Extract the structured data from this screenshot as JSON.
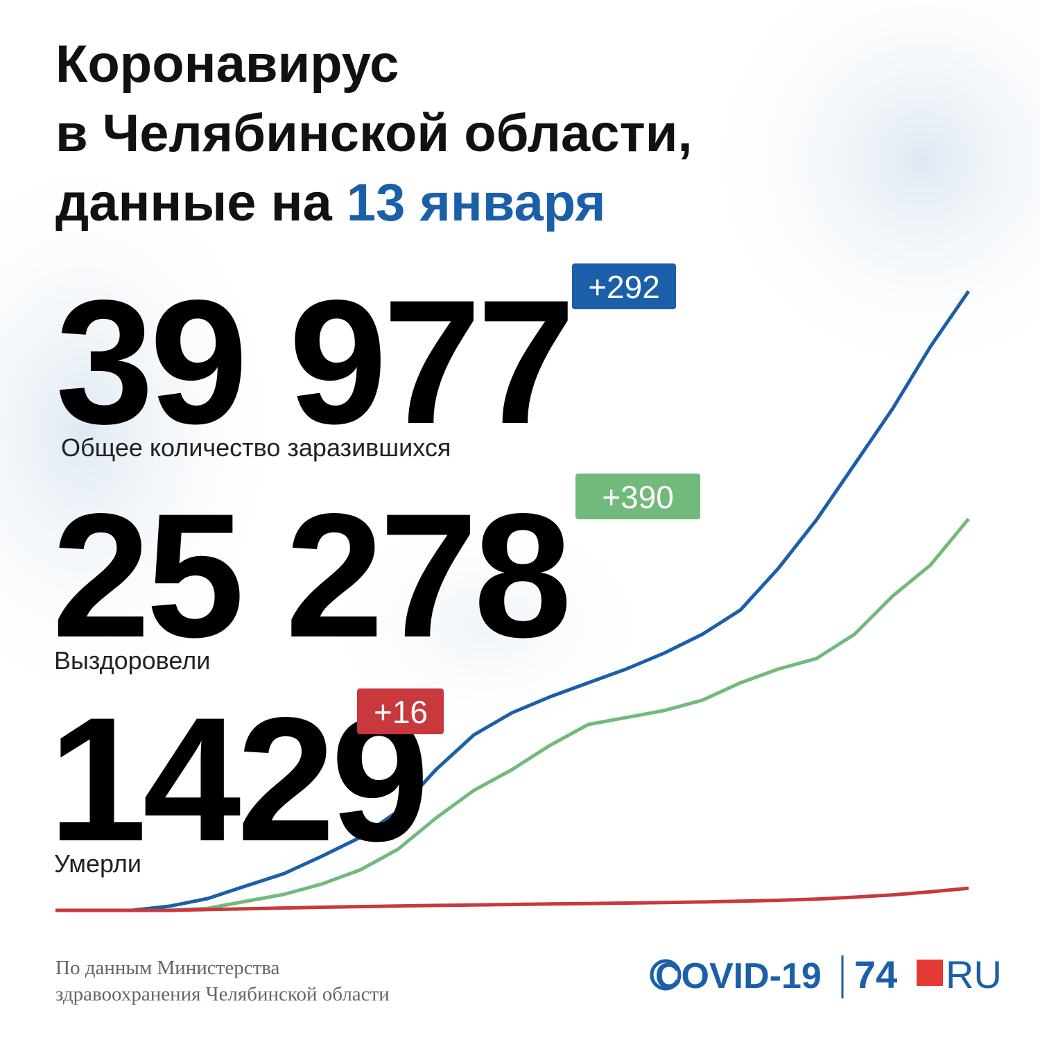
{
  "header": {
    "title_lines": [
      "Коронавирус",
      "в Челябинской области,",
      "данные на"
    ],
    "date": "13 января"
  },
  "stats": [
    {
      "value": "39 977",
      "delta": "+292",
      "label": "Общее количество заразившихся"
    },
    {
      "value": "25 278",
      "delta": "+390",
      "label": "Выздоровели"
    },
    {
      "value": "1429",
      "delta": "+16",
      "label": "Умерли"
    }
  ],
  "chart_data": {
    "type": "line",
    "ylim": [
      0,
      40000
    ],
    "series": [
      {
        "color": "#1a5fa8",
        "values": [
          0,
          0,
          0,
          270,
          760,
          1570,
          2370,
          3490,
          4700,
          6400,
          9090,
          11330,
          12760,
          13790,
          14690,
          15580,
          16610,
          17820,
          19390,
          22080,
          25210,
          28790,
          32380,
          36410,
          39977
        ]
      },
      {
        "color": "#72b97c",
        "values": [
          0,
          0,
          0,
          0,
          130,
          580,
          1030,
          1700,
          2600,
          3940,
          5960,
          7750,
          9090,
          10660,
          12000,
          12450,
          12900,
          13570,
          14690,
          15580,
          16260,
          17820,
          20290,
          22300,
          25278
        ]
      },
      {
        "color": "#c8383d",
        "values": [
          0,
          0,
          0,
          0,
          50,
          100,
          150,
          200,
          240,
          280,
          320,
          350,
          380,
          410,
          440,
          470,
          500,
          540,
          590,
          650,
          730,
          850,
          1000,
          1200,
          1429
        ]
      }
    ]
  },
  "footer": {
    "source_lines": [
      "По данным Министерства",
      "здравоохранения Челябинской области"
    ],
    "logo_covid": "COVID-19",
    "logo_74": "74",
    "logo_ru": "RU"
  }
}
